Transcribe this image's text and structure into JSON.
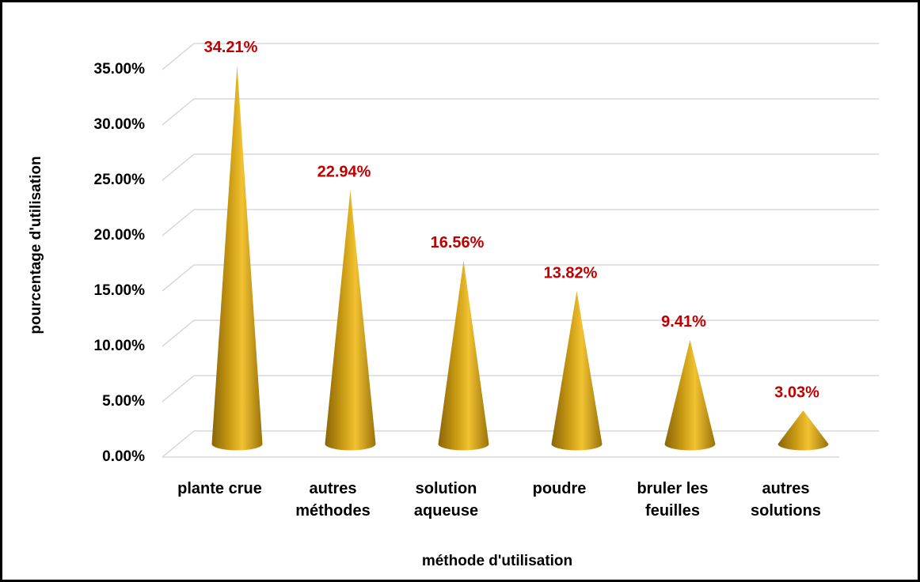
{
  "chart_data": {
    "type": "cone",
    "x_label": "méthode d'utilisation",
    "y_label": "pourcentage d'utilisation",
    "categories": [
      "plante crue",
      "autres méthodes",
      "solution aqueuse",
      "poudre",
      "bruler les feuilles",
      "autres solutions"
    ],
    "values": [
      34.21,
      22.94,
      16.56,
      13.82,
      9.41,
      3.03
    ],
    "value_labels": [
      "34.21%",
      "22.94%",
      "16.56%",
      "13.82%",
      "9.41%",
      "3.03%"
    ],
    "color": "#d4a017",
    "label_color": "#c00000",
    "ylim": [
      0,
      35
    ],
    "yticks": [
      {
        "value": 0,
        "label": "0.00%"
      },
      {
        "value": 5,
        "label": "5.00%"
      },
      {
        "value": 10,
        "label": "10.00%"
      },
      {
        "value": 15,
        "label": "15.00%"
      },
      {
        "value": 20,
        "label": "20.00%"
      },
      {
        "value": 25,
        "label": "25.00%"
      },
      {
        "value": 30,
        "label": "30.00%"
      },
      {
        "value": 35,
        "label": "35.00%"
      }
    ],
    "grid": true
  }
}
